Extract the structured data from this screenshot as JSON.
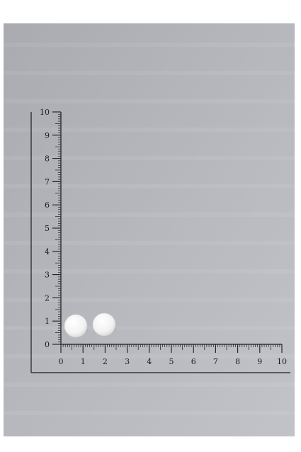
{
  "scene": {
    "description_label": "photo of two white round tablets beside a centimetre ruler"
  },
  "ruler": {
    "unit": "cm",
    "x_labels": [
      "0",
      "1",
      "2",
      "3",
      "4",
      "5",
      "6",
      "7",
      "8",
      "9",
      "10"
    ],
    "y_labels": [
      "0",
      "1",
      "2",
      "3",
      "4",
      "5",
      "6",
      "7",
      "8",
      "9",
      "10"
    ]
  },
  "colors": {
    "page": "#ffffff",
    "backdrop": "#b3b5bb",
    "ruler_ink": "#1c1c1c",
    "tablet": "#f4f4f4"
  }
}
